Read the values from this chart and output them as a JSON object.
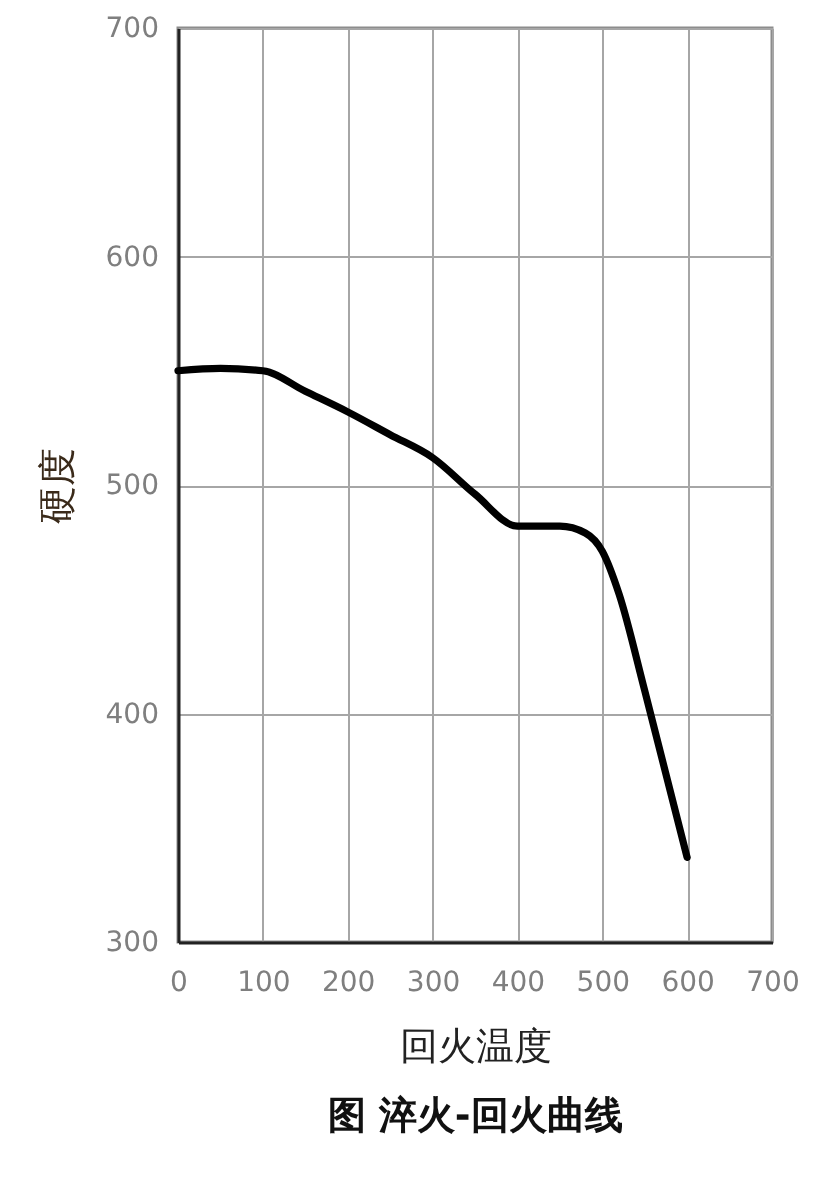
{
  "chart_data": {
    "type": "line",
    "title": "图 淬火-回火曲线",
    "xlabel": "回火温度",
    "ylabel": "硬度",
    "x": [
      0,
      50,
      100,
      150,
      200,
      250,
      300,
      350,
      400,
      450,
      480,
      500,
      520,
      550,
      600
    ],
    "series": [
      {
        "color": "#000000",
        "values": [
          550,
          551,
          550,
          541,
          532,
          522,
          512,
          496,
          482,
          482,
          479,
          471,
          452,
          410,
          337
        ]
      }
    ],
    "xlim": [
      0,
      700
    ],
    "xticks": [
      0,
      100,
      200,
      300,
      400,
      500,
      600,
      700
    ],
    "ylim": [
      300,
      700
    ],
    "yticks": [
      300,
      400,
      500,
      600,
      700
    ],
    "grid": true,
    "line_style": "solid"
  }
}
